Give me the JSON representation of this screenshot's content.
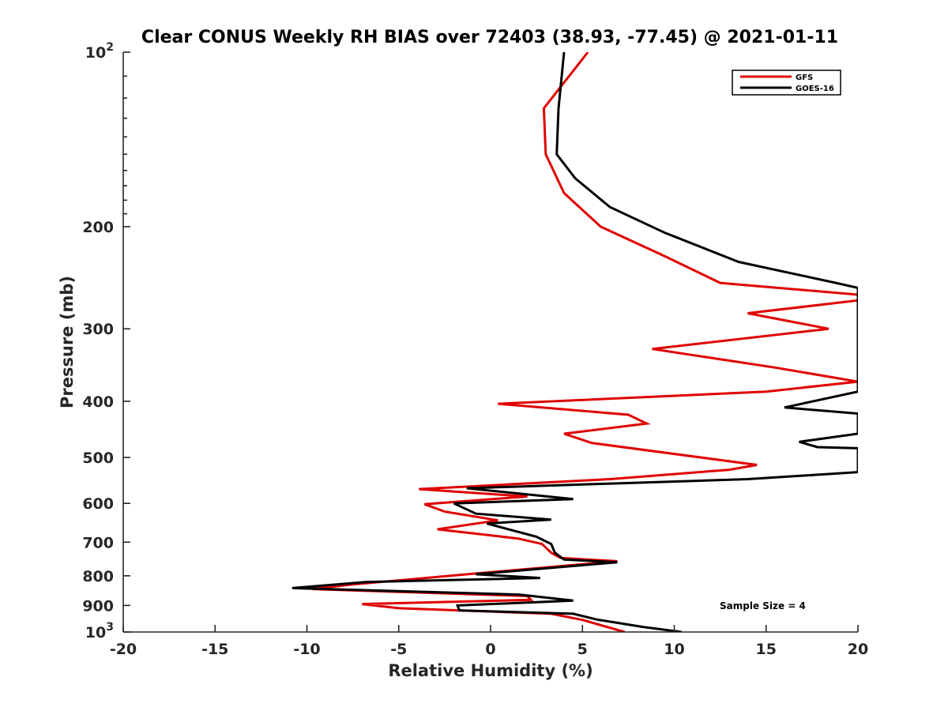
{
  "chart_data": {
    "type": "line",
    "title": "Clear CONUS Weekly RH BIAS over 72403 (38.93, -77.45) @ 2021-01-11",
    "xlabel": "Relative Humidity (%)",
    "ylabel": "Pressure (mb)",
    "xlim": [
      -20,
      20
    ],
    "ylim": [
      100,
      1000
    ],
    "y_scale": "log",
    "y_reversed": true,
    "grid": false,
    "legend_position": "top-right",
    "annotation": "Sample Size = 4",
    "x_ticks": [
      "-20",
      "-15",
      "-10",
      "-5",
      "0",
      "5",
      "10",
      "15",
      "20"
    ],
    "y_ticks": [
      {
        "value": 100,
        "label": "10",
        "exp": "2"
      },
      {
        "value": 200,
        "label": "200",
        "exp": ""
      },
      {
        "value": 300,
        "label": "300",
        "exp": ""
      },
      {
        "value": 400,
        "label": "400",
        "exp": ""
      },
      {
        "value": 500,
        "label": "500",
        "exp": ""
      },
      {
        "value": 600,
        "label": "600",
        "exp": ""
      },
      {
        "value": 700,
        "label": "700",
        "exp": ""
      },
      {
        "value": 800,
        "label": "800",
        "exp": ""
      },
      {
        "value": 900,
        "label": "900",
        "exp": ""
      },
      {
        "value": 1000,
        "label": "10",
        "exp": "3"
      }
    ],
    "series": [
      {
        "name": "GFS",
        "color": "#e00000",
        "points": [
          [
            5.3,
            100
          ],
          [
            2.9,
            125
          ],
          [
            3.0,
            150
          ],
          [
            4.0,
            175
          ],
          [
            6.0,
            200
          ],
          [
            9.5,
            225
          ],
          [
            12.5,
            250
          ],
          [
            20.0,
            262
          ],
          [
            20.0,
            268
          ],
          [
            14.0,
            282
          ],
          [
            18.4,
            300
          ],
          [
            8.8,
            325
          ],
          [
            15.5,
            350
          ],
          [
            20.0,
            370
          ],
          [
            15.0,
            385
          ],
          [
            0.4,
            404
          ],
          [
            7.5,
            422
          ],
          [
            8.5,
            437
          ],
          [
            4.0,
            455
          ],
          [
            5.5,
            472
          ],
          [
            14.5,
            515
          ],
          [
            13.0,
            525
          ],
          [
            6.5,
            545
          ],
          [
            -3.9,
            567
          ],
          [
            2.0,
            584
          ],
          [
            -3.6,
            602
          ],
          [
            -2.5,
            620
          ],
          [
            0.4,
            642
          ],
          [
            -2.9,
            665
          ],
          [
            1.5,
            690
          ],
          [
            2.8,
            705
          ],
          [
            3.3,
            730
          ],
          [
            3.8,
            745
          ],
          [
            6.9,
            755
          ],
          [
            -0.9,
            793
          ],
          [
            -7.5,
            828
          ],
          [
            -9.7,
            843
          ],
          [
            2.0,
            867
          ],
          [
            2.2,
            880
          ],
          [
            -7.0,
            895
          ],
          [
            -5.0,
            910
          ],
          [
            3.3,
            930
          ],
          [
            5.0,
            953
          ],
          [
            7.3,
            1000
          ]
        ]
      },
      {
        "name": "GOES-16",
        "color": "#000000",
        "points": [
          [
            4.0,
            100
          ],
          [
            3.7,
            125
          ],
          [
            3.6,
            150
          ],
          [
            4.6,
            165
          ],
          [
            6.5,
            185
          ],
          [
            9.5,
            205
          ],
          [
            13.5,
            230
          ],
          [
            18.8,
            250
          ],
          [
            20.0,
            255
          ],
          [
            20.0,
            385
          ],
          [
            16.0,
            410
          ],
          [
            20.0,
            420
          ],
          [
            20.0,
            455
          ],
          [
            16.8,
            470
          ],
          [
            17.8,
            480
          ],
          [
            20.0,
            482
          ],
          [
            20.0,
            530
          ],
          [
            14.0,
            545
          ],
          [
            -1.3,
            565
          ],
          [
            4.5,
            590
          ],
          [
            -2.0,
            600
          ],
          [
            -0.8,
            625
          ],
          [
            3.3,
            640
          ],
          [
            -0.2,
            650
          ],
          [
            2.5,
            685
          ],
          [
            3.3,
            705
          ],
          [
            3.5,
            730
          ],
          [
            4.0,
            750
          ],
          [
            6.9,
            758
          ],
          [
            -0.8,
            795
          ],
          [
            2.7,
            807
          ],
          [
            -6.8,
            820
          ],
          [
            -10.8,
            840
          ],
          [
            1.6,
            862
          ],
          [
            4.5,
            883
          ],
          [
            -1.8,
            900
          ],
          [
            -1.7,
            918
          ],
          [
            4.5,
            930
          ],
          [
            5.8,
            952
          ],
          [
            8.3,
            980
          ],
          [
            10.4,
            1000
          ]
        ]
      }
    ]
  }
}
